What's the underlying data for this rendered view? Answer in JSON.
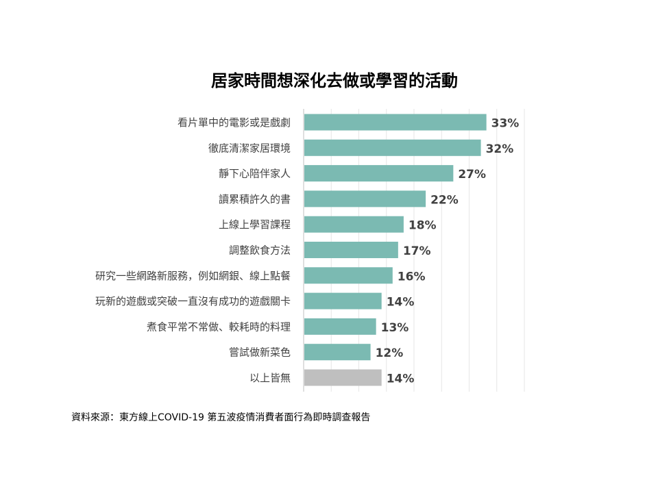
{
  "chart_data": {
    "type": "bar",
    "orientation": "horizontal",
    "title": "居家時間想深化去做或學習的活動",
    "categories": [
      "看片單中的電影或是戲劇",
      "徹底清潔家居環境",
      "靜下心陪伴家人",
      "讀累積許久的書",
      "上線上學習課程",
      "調整飲食方法",
      "研究一些網路新服務，例如網銀、線上點餐",
      "玩新的遊戲或突破一直沒有成功的遊戲關卡",
      "煮食平常不常做、較耗時的料理",
      "嘗試做新菜色",
      "以上皆無"
    ],
    "values": [
      33,
      32,
      27,
      22,
      18,
      17,
      16,
      14,
      13,
      12,
      14
    ],
    "value_labels": [
      "33%",
      "32%",
      "27%",
      "22%",
      "18%",
      "17%",
      "16%",
      "14%",
      "13%",
      "12%",
      "14%"
    ],
    "xlim": [
      0,
      40
    ],
    "grid": true,
    "legend": "none",
    "colors": {
      "bar": "#7bbab2",
      "none_bar": "#bfbfbf",
      "grid": "#e6e6e6",
      "axis": "#bfbfbf",
      "label_text": "#404040",
      "value_text": "#404040"
    }
  },
  "source_note": "資料來源：東方線上COVID-19 第五波疫情消費者面行為即時調查報告"
}
